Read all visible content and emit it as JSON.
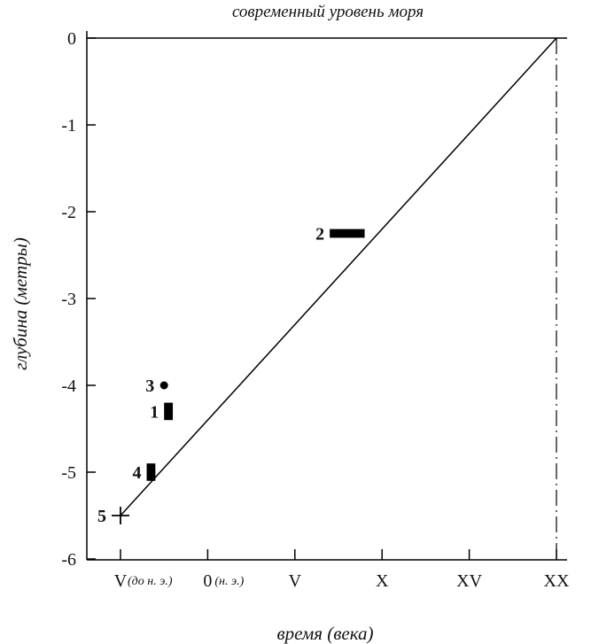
{
  "chart_data": {
    "type": "scatter",
    "title": "современный уровень моря",
    "xlabel": "время (века)",
    "ylabel": "глубина (метры)",
    "xlim": [
      -7,
      21
    ],
    "ylim": [
      -6.1,
      0
    ],
    "y_ticks": [
      {
        "value": 0,
        "label": "0"
      },
      {
        "value": -1,
        "label": "-1"
      },
      {
        "value": -2,
        "label": "-2"
      },
      {
        "value": -3,
        "label": "-3"
      },
      {
        "value": -4,
        "label": "-4"
      },
      {
        "value": -5,
        "label": "-5"
      },
      {
        "value": -6,
        "label": "-6"
      }
    ],
    "x_ticks": [
      {
        "value": -5,
        "label": "V",
        "note": "(до н. э.)"
      },
      {
        "value": 0,
        "label": "0",
        "note": "(н. э.)"
      },
      {
        "value": 5,
        "label": "V",
        "note": ""
      },
      {
        "value": 10,
        "label": "X",
        "note": ""
      },
      {
        "value": 15,
        "label": "XV",
        "note": ""
      },
      {
        "value": 20,
        "label": "XX",
        "note": ""
      }
    ],
    "trend_line": {
      "x": [
        -5,
        20
      ],
      "y": [
        -5.5,
        0
      ]
    },
    "reference_line": {
      "x": 20,
      "style": "dash-dot"
    },
    "points": [
      {
        "label": "1",
        "marker": "bar",
        "x_range": [
          -2.5,
          -2.0
        ],
        "y_range": [
          -4.4,
          -4.2
        ]
      },
      {
        "label": "2",
        "marker": "bar",
        "x_range": [
          7.0,
          9.0
        ],
        "y_range": [
          -2.3,
          -2.2
        ]
      },
      {
        "label": "3",
        "marker": "dot",
        "x": -2.5,
        "y": -4.0
      },
      {
        "label": "4",
        "marker": "bar",
        "x_range": [
          -3.5,
          -3.0
        ],
        "y_range": [
          -5.1,
          -4.9
        ]
      },
      {
        "label": "5",
        "marker": "cross",
        "x": -5.0,
        "y": -5.5
      }
    ],
    "grid": false,
    "legend": "none"
  }
}
